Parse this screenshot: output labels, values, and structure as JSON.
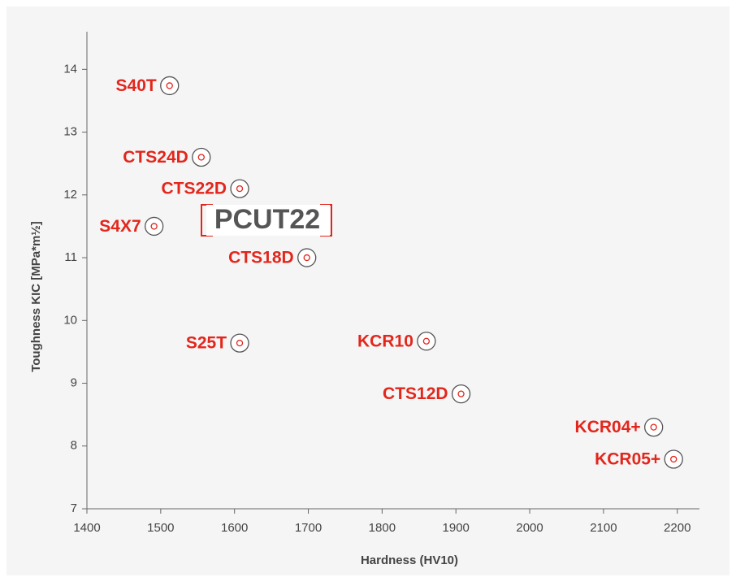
{
  "chart_data": {
    "type": "scatter",
    "x_label": "Hardness (HV10)",
    "y_label": "Toughness KIC [MPa*m½]",
    "logo": "PCUT22",
    "labels": [
      "S40T",
      "CTS24D",
      "CTS22D",
      "S4X7",
      "CTS18D",
      "S25T",
      "KCR10",
      "CTS12D",
      "KCR04+",
      "KCR05+"
    ],
    "x": [
      1512,
      1555,
      1607,
      1491,
      1698,
      1607,
      1860,
      1907,
      2168,
      2195
    ],
    "values": [
      13.74,
      12.6,
      12.1,
      11.5,
      11.0,
      9.64,
      9.67,
      8.83,
      8.3,
      7.79
    ],
    "label_color": "#e3261c",
    "color": "#555555",
    "xlim": [
      1400,
      2230
    ],
    "ylim": [
      7,
      14.6
    ],
    "xticks": [
      1400,
      1500,
      1600,
      1700,
      1800,
      1900,
      2000,
      2100,
      2200
    ],
    "yticks": [
      7,
      8,
      9,
      10,
      11,
      12,
      13,
      14
    ]
  }
}
